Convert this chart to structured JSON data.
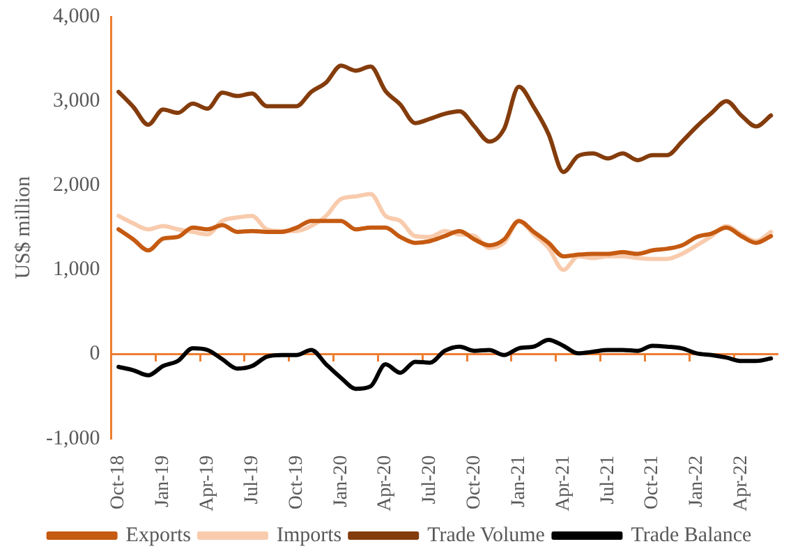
{
  "chart_data": {
    "type": "line",
    "ylabel": "US$ million",
    "categories": [
      "Oct-18",
      null,
      null,
      "Jan-19",
      null,
      null,
      "Apr-19",
      null,
      null,
      "Jul-19",
      null,
      null,
      "Oct-19",
      null,
      null,
      "Jan-20",
      null,
      null,
      "Apr-20",
      null,
      null,
      "Jul-20",
      null,
      null,
      "Oct-20",
      null,
      null,
      "Jan-21",
      null,
      null,
      "Apr-21",
      null,
      null,
      "Jul-21",
      null,
      null,
      "Oct-21",
      null,
      null,
      "Jan-22",
      null,
      null,
      "Apr-22",
      null,
      null
    ],
    "series": [
      {
        "name": "Exports",
        "color": "#c55a11",
        "values": [
          1480,
          1360,
          1230,
          1370,
          1390,
          1500,
          1480,
          1530,
          1450,
          1460,
          1450,
          1450,
          1500,
          1580,
          1580,
          1580,
          1480,
          1500,
          1500,
          1390,
          1320,
          1340,
          1400,
          1460,
          1360,
          1290,
          1360,
          1580,
          1450,
          1320,
          1160,
          1180,
          1190,
          1190,
          1210,
          1190,
          1230,
          1250,
          1290,
          1390,
          1430,
          1500,
          1400,
          1320,
          1400
        ]
      },
      {
        "name": "Imports",
        "color": "#f8cbad",
        "values": [
          1640,
          1550,
          1480,
          1520,
          1480,
          1450,
          1420,
          1580,
          1620,
          1640,
          1480,
          1460,
          1460,
          1520,
          1640,
          1840,
          1870,
          1900,
          1640,
          1580,
          1400,
          1390,
          1460,
          1420,
          1400,
          1260,
          1320,
          1580,
          1420,
          1260,
          1000,
          1160,
          1140,
          1160,
          1160,
          1140,
          1130,
          1130,
          1190,
          1290,
          1400,
          1520,
          1420,
          1340,
          1450
        ]
      },
      {
        "name": "Trade Volume",
        "color": "#843c0c",
        "values": [
          3110,
          2930,
          2720,
          2900,
          2860,
          2970,
          2910,
          3100,
          3060,
          3090,
          2940,
          2940,
          2940,
          3110,
          3220,
          3420,
          3360,
          3410,
          3120,
          2960,
          2740,
          2790,
          2850,
          2880,
          2700,
          2520,
          2670,
          3170,
          2930,
          2610,
          2160,
          2350,
          2380,
          2320,
          2380,
          2300,
          2360,
          2360,
          2520,
          2700,
          2860,
          3000,
          2830,
          2700,
          2830
        ]
      },
      {
        "name": "Trade Balance",
        "color": "#000000",
        "values": [
          -150,
          -190,
          -250,
          -140,
          -80,
          70,
          50,
          -60,
          -170,
          -140,
          -30,
          -10,
          -10,
          50,
          -120,
          -280,
          -410,
          -380,
          -120,
          -220,
          -90,
          -100,
          40,
          90,
          40,
          50,
          -10,
          70,
          90,
          170,
          100,
          10,
          30,
          50,
          50,
          40,
          100,
          90,
          70,
          10,
          -10,
          -40,
          -80,
          -80,
          -50
        ]
      }
    ],
    "ylim": [
      -1000,
      4000
    ],
    "yticks": [
      {
        "value": -1000,
        "label": "-1,000"
      },
      {
        "value": 0,
        "label": "0"
      },
      {
        "value": 1000,
        "label": "1,000"
      },
      {
        "value": 2000,
        "label": "2,000"
      },
      {
        "value": 3000,
        "label": "3,000"
      },
      {
        "value": 4000,
        "label": "4,000"
      }
    ],
    "ref_lines": [
      {
        "axis": "y",
        "value": 0,
        "color": "#ed7d31"
      }
    ],
    "grid": false,
    "legend": "bottom",
    "marker": "none",
    "line_style": "solid"
  }
}
